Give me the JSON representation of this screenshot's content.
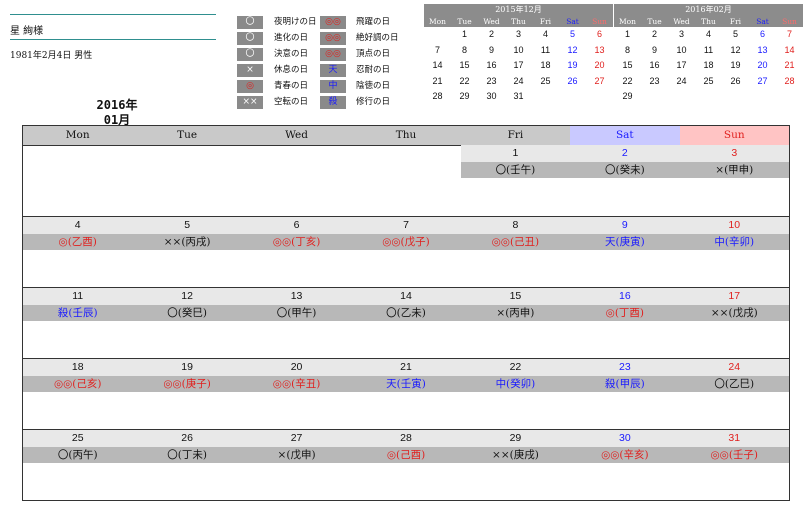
{
  "profile": {
    "name": "星 絢様",
    "birth": "1981年2月4日 男性"
  },
  "current": {
    "year": "2016年",
    "month": "01月"
  },
  "legend": [
    {
      "symbol": "〇",
      "label": "夜明けの日",
      "style": "gray"
    },
    {
      "symbol": "〇",
      "label": "進化の日",
      "style": "gray"
    },
    {
      "symbol": "〇",
      "label": "決意の日",
      "style": "gray"
    },
    {
      "symbol": "×",
      "label": "休息の日",
      "style": "gray"
    },
    {
      "symbol": "◎",
      "label": "青春の日",
      "style": "grayr"
    },
    {
      "symbol": "××",
      "label": "空転の日",
      "style": "gray"
    },
    {
      "symbol": "◎◎",
      "label": "飛躍の日",
      "style": "grayr"
    },
    {
      "symbol": "◎◎",
      "label": "絶好調の日",
      "style": "grayr"
    },
    {
      "symbol": "◎◎",
      "label": "頂点の日",
      "style": "grayr"
    },
    {
      "symbol": "天",
      "label": "忍耐の日",
      "style": "grayb"
    },
    {
      "symbol": "中",
      "label": "陰徳の日",
      "style": "grayb"
    },
    {
      "symbol": "殺",
      "label": "修行の日",
      "style": "grayb"
    }
  ],
  "mini_prev": {
    "title": "2015年12月",
    "weekdays": [
      "Mon",
      "Tue",
      "Wed",
      "Thu",
      "Fri",
      "Sat",
      "Sun"
    ],
    "cells": [
      "",
      "1",
      "2",
      "3",
      "4",
      "5",
      "6",
      "7",
      "8",
      "9",
      "10",
      "11",
      "12",
      "13",
      "14",
      "15",
      "16",
      "17",
      "18",
      "19",
      "20",
      "21",
      "22",
      "23",
      "24",
      "25",
      "26",
      "27",
      "28",
      "29",
      "30",
      "31",
      "",
      "",
      ""
    ]
  },
  "mini_next": {
    "title": "2016年02月",
    "weekdays": [
      "Mon",
      "Tue",
      "Wed",
      "Thu",
      "Fri",
      "Sat",
      "Sun"
    ],
    "cells": [
      "1",
      "2",
      "3",
      "4",
      "5",
      "6",
      "7",
      "8",
      "9",
      "10",
      "11",
      "12",
      "13",
      "14",
      "15",
      "16",
      "17",
      "18",
      "19",
      "20",
      "21",
      "22",
      "23",
      "24",
      "25",
      "26",
      "27",
      "28",
      "29",
      "",
      "",
      "",
      "",
      "",
      ""
    ]
  },
  "calendar": {
    "weekdays": [
      "Mon",
      "Tue",
      "Wed",
      "Thu",
      "Fri",
      "Sat",
      "Sun"
    ],
    "weeks": [
      [
        {
          "day": "",
          "status": "",
          "color": "black"
        },
        {
          "day": "",
          "status": "",
          "color": "black"
        },
        {
          "day": "",
          "status": "",
          "color": "black"
        },
        {
          "day": "",
          "status": "",
          "color": "black"
        },
        {
          "day": "1",
          "status": "〇(壬午)",
          "color": "black"
        },
        {
          "day": "2",
          "status": "〇(癸未)",
          "color": "black"
        },
        {
          "day": "3",
          "status": "×(甲申)",
          "color": "black"
        }
      ],
      [
        {
          "day": "4",
          "status": "◎(乙酉)",
          "color": "red"
        },
        {
          "day": "5",
          "status": "××(丙戌)",
          "color": "black"
        },
        {
          "day": "6",
          "status": "◎◎(丁亥)",
          "color": "red"
        },
        {
          "day": "7",
          "status": "◎◎(戊子)",
          "color": "red"
        },
        {
          "day": "8",
          "status": "◎◎(己丑)",
          "color": "red"
        },
        {
          "day": "9",
          "status": "天(庚寅)",
          "color": "blue"
        },
        {
          "day": "10",
          "status": "中(辛卯)",
          "color": "blue"
        }
      ],
      [
        {
          "day": "11",
          "status": "殺(壬辰)",
          "color": "blue"
        },
        {
          "day": "12",
          "status": "〇(癸巳)",
          "color": "black"
        },
        {
          "day": "13",
          "status": "〇(甲午)",
          "color": "black"
        },
        {
          "day": "14",
          "status": "〇(乙未)",
          "color": "black"
        },
        {
          "day": "15",
          "status": "×(丙申)",
          "color": "black"
        },
        {
          "day": "16",
          "status": "◎(丁酉)",
          "color": "red"
        },
        {
          "day": "17",
          "status": "××(戊戌)",
          "color": "black"
        }
      ],
      [
        {
          "day": "18",
          "status": "◎◎(己亥)",
          "color": "red"
        },
        {
          "day": "19",
          "status": "◎◎(庚子)",
          "color": "red"
        },
        {
          "day": "20",
          "status": "◎◎(辛丑)",
          "color": "red"
        },
        {
          "day": "21",
          "status": "天(壬寅)",
          "color": "blue"
        },
        {
          "day": "22",
          "status": "中(癸卯)",
          "color": "blue"
        },
        {
          "day": "23",
          "status": "殺(甲辰)",
          "color": "blue"
        },
        {
          "day": "24",
          "status": "〇(乙巳)",
          "color": "black"
        }
      ],
      [
        {
          "day": "25",
          "status": "〇(丙午)",
          "color": "black"
        },
        {
          "day": "26",
          "status": "〇(丁未)",
          "color": "black"
        },
        {
          "day": "27",
          "status": "×(戊申)",
          "color": "black"
        },
        {
          "day": "28",
          "status": "◎(己酉)",
          "color": "red"
        },
        {
          "day": "29",
          "status": "××(庚戌)",
          "color": "black"
        },
        {
          "day": "30",
          "status": "◎◎(辛亥)",
          "color": "red"
        },
        {
          "day": "31",
          "status": "◎◎(壬子)",
          "color": "red"
        }
      ]
    ]
  },
  "colors": {
    "teal": "#2f8f8f",
    "red": "#e0201e",
    "blue": "#1a1aff",
    "header_gray": "#8c8c8c",
    "sat_bg": "#c9c9ff",
    "sun_bg": "#ffc4c4"
  }
}
